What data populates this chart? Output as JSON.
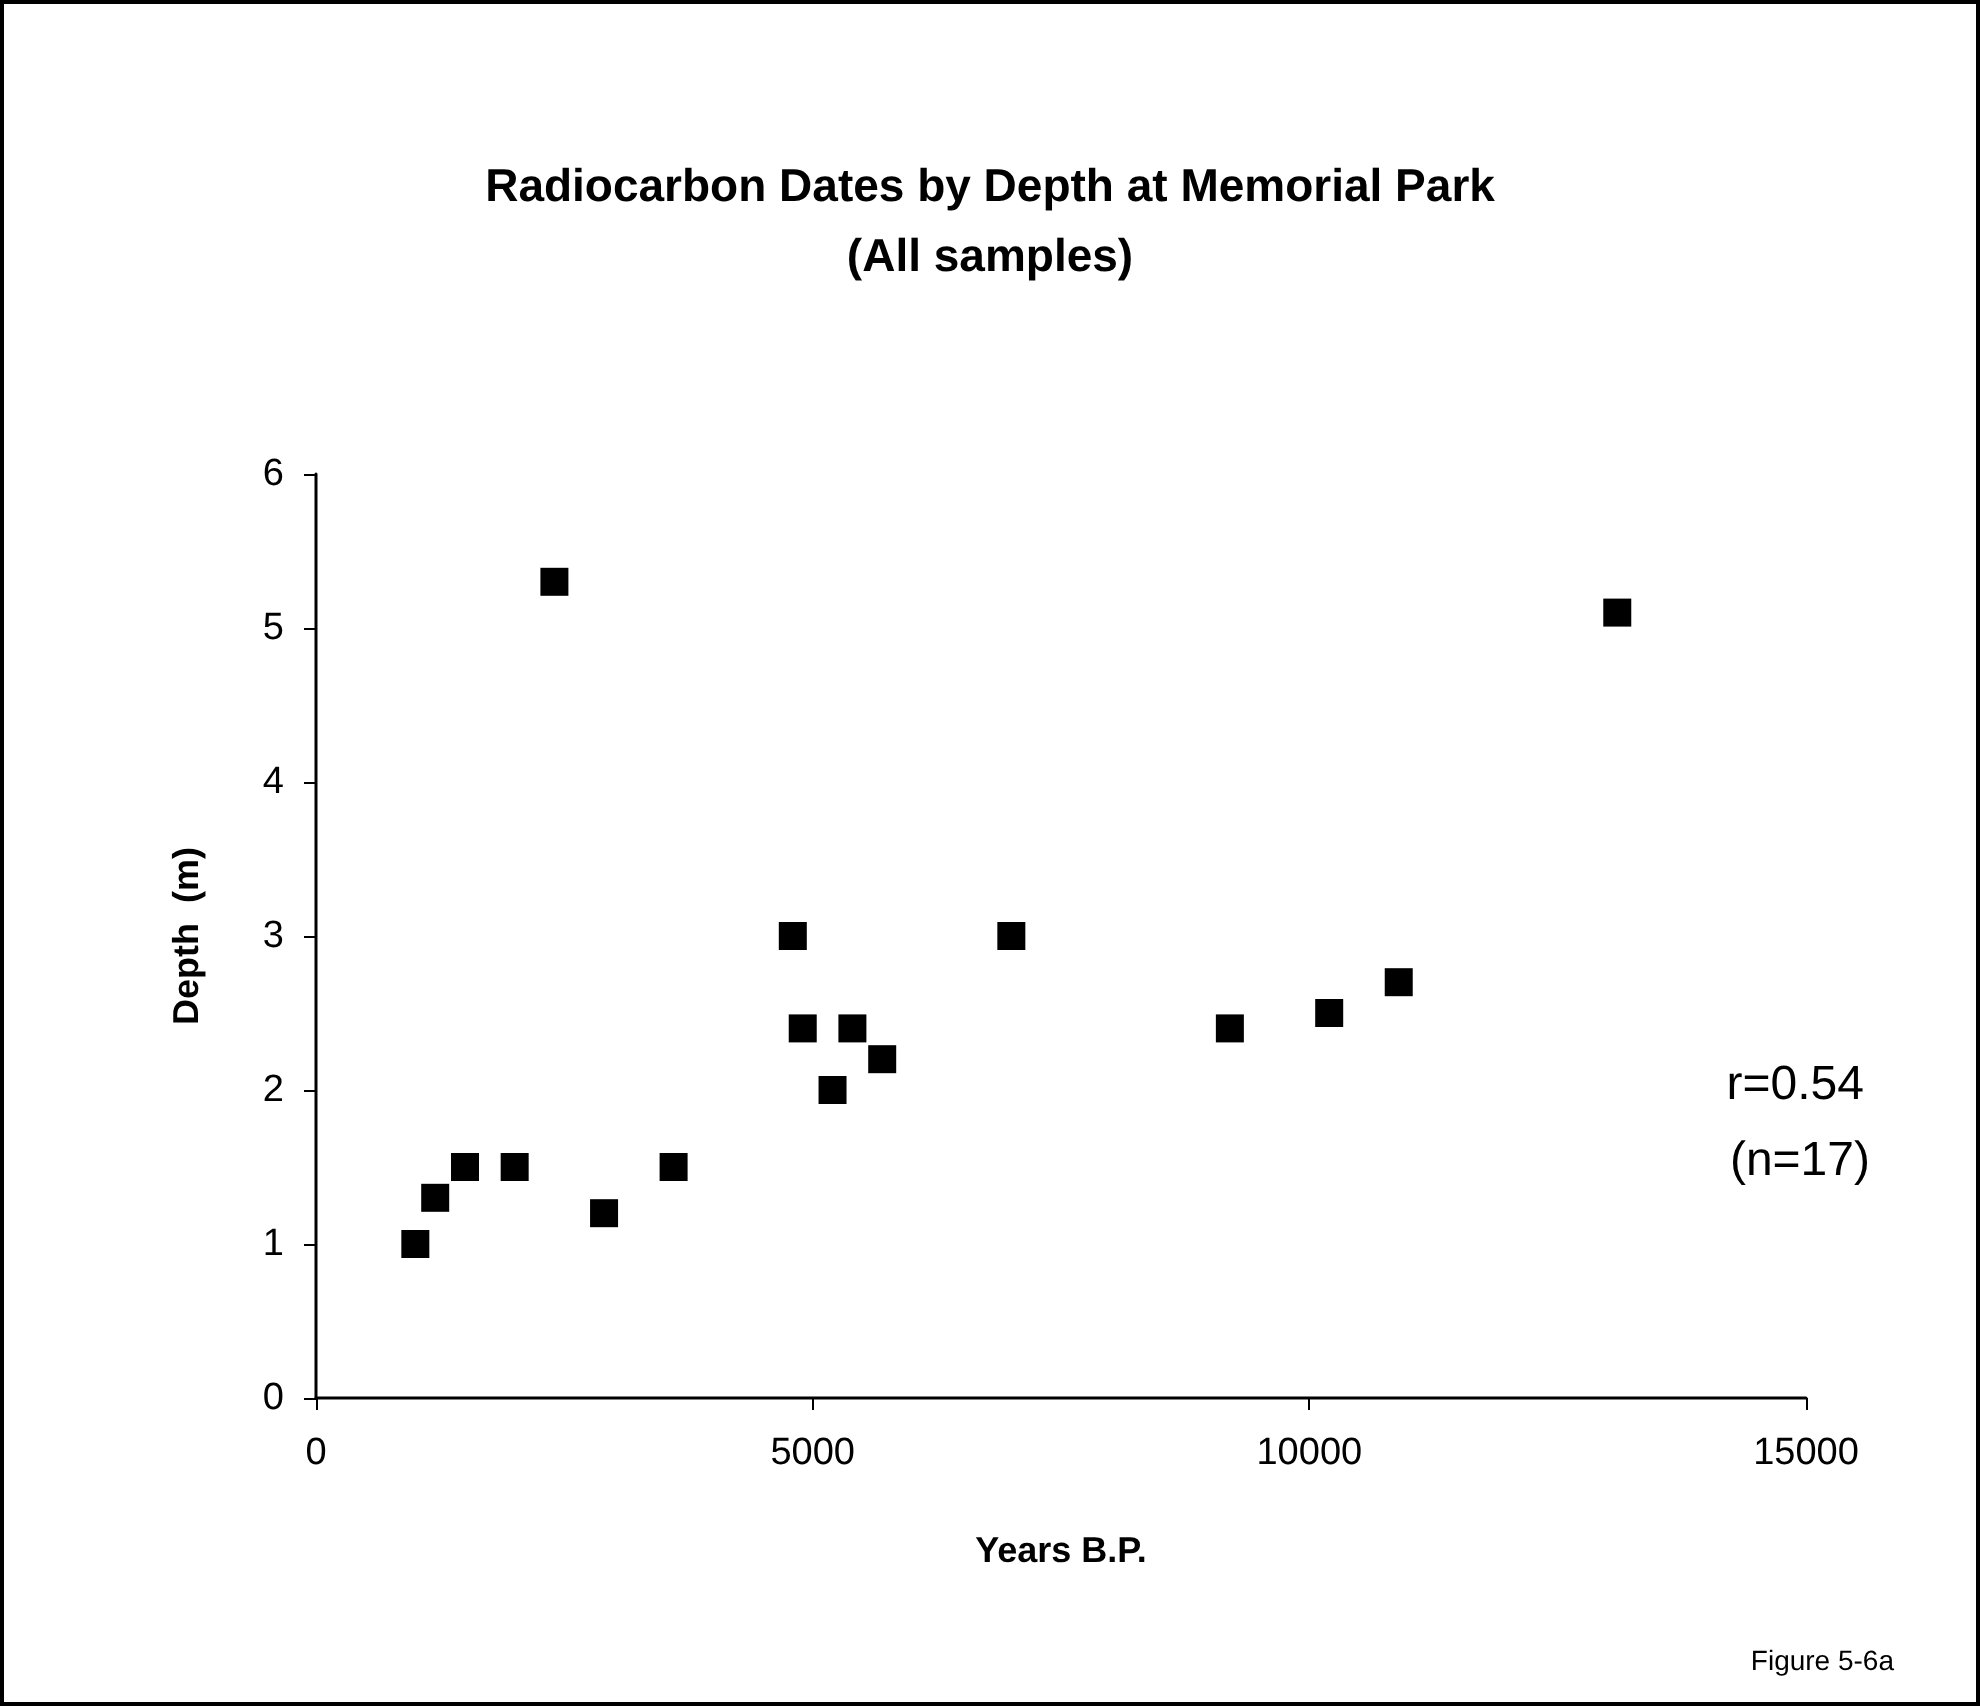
{
  "chart_data": {
    "type": "scatter",
    "title": "Radiocarbon Dates by Depth at Memorial Park",
    "subtitle": "(All samples)",
    "xlabel": "Years B.P.",
    "ylabel": "Depth  (m)",
    "x": [
      1000,
      1200,
      1500,
      2000,
      2400,
      2900,
      3600,
      4800,
      4900,
      5400,
      5200,
      5700,
      7000,
      9200,
      10200,
      10900,
      13100
    ],
    "series": [
      {
        "color": "#000000",
        "values": [
          1.0,
          1.3,
          1.5,
          1.5,
          5.3,
          1.2,
          1.5,
          3.0,
          2.4,
          2.4,
          2.0,
          2.2,
          3.0,
          2.4,
          2.5,
          2.7,
          5.1
        ]
      }
    ],
    "xlim": [
      0,
      15000
    ],
    "xticks": [
      0,
      5000,
      10000,
      15000
    ],
    "ylim": [
      0,
      6
    ],
    "yticks": [
      0,
      1,
      2,
      3,
      4,
      5,
      6
    ],
    "marker": "square",
    "grid": false,
    "annotations": [
      "r=0.54",
      "(n=17)",
      "Figure 5-6a"
    ]
  }
}
